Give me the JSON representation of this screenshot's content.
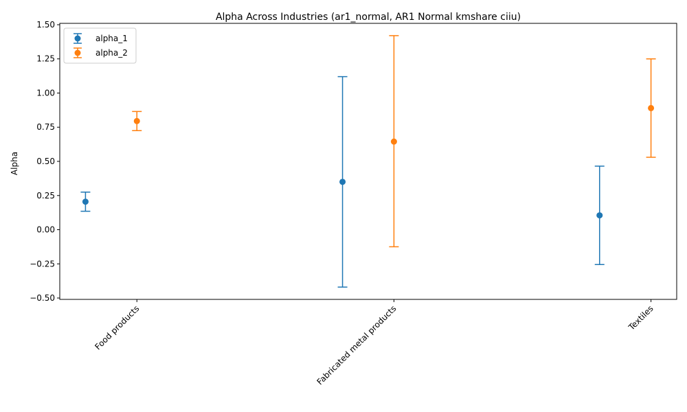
{
  "chart_data": {
    "type": "scatter",
    "title": "Alpha Across Industries (ar1_normal, AR1 Normal kmshare ciiu)",
    "xlabel": "",
    "ylabel": "Alpha",
    "categories": [
      "Food products",
      "Fabricated metal products",
      "Textiles"
    ],
    "ylim": [
      -0.51,
      1.51
    ],
    "yticks": [
      -0.5,
      -0.25,
      0.0,
      0.25,
      0.5,
      0.75,
      1.0,
      1.25,
      1.5
    ],
    "ytick_labels": [
      "−0.50",
      "−0.25",
      "0.00",
      "0.25",
      "0.50",
      "0.75",
      "1.00",
      "1.25",
      "1.50"
    ],
    "legend_position": "top-left",
    "grid": false,
    "series": [
      {
        "name": "alpha_1",
        "color": "#1f77b4",
        "offset": -0.2,
        "values": [
          0.205,
          0.35,
          0.105
        ],
        "lower": [
          0.135,
          -0.42,
          -0.255
        ],
        "upper": [
          0.275,
          1.12,
          0.465
        ]
      },
      {
        "name": "alpha_2",
        "color": "#ff7f0e",
        "offset": 0.0,
        "values": [
          0.795,
          0.645,
          0.89
        ],
        "lower": [
          0.725,
          -0.125,
          0.53
        ],
        "upper": [
          0.865,
          1.42,
          1.25
        ]
      }
    ]
  }
}
